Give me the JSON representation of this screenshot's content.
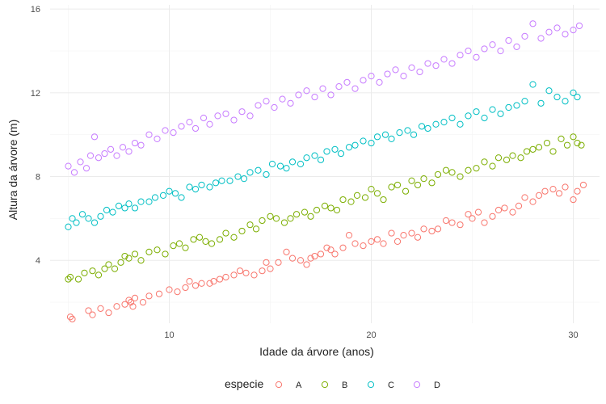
{
  "chart_data": {
    "type": "scatter",
    "xlabel": "Idade da árvore (anos)",
    "ylabel": "Altura da árvore (m)",
    "xlim": [
      4.1,
      31.3
    ],
    "ylim": [
      1.0,
      16.2
    ],
    "xticks": [
      10,
      20,
      30
    ],
    "yticks": [
      4,
      8,
      12,
      16
    ],
    "grid": true,
    "legend": {
      "title": "especie",
      "position": "bottom"
    },
    "series": [
      {
        "name": "A",
        "color": "#F8766D",
        "points": [
          [
            5.1,
            1.3
          ],
          [
            5.2,
            1.2
          ],
          [
            6.0,
            1.6
          ],
          [
            6.2,
            1.4
          ],
          [
            6.6,
            1.7
          ],
          [
            7.0,
            1.5
          ],
          [
            7.4,
            1.8
          ],
          [
            7.8,
            1.9
          ],
          [
            8.0,
            2.1
          ],
          [
            8.1,
            2.0
          ],
          [
            8.2,
            1.8
          ],
          [
            8.3,
            2.2
          ],
          [
            8.7,
            2.0
          ],
          [
            9.0,
            2.3
          ],
          [
            9.5,
            2.4
          ],
          [
            10.0,
            2.6
          ],
          [
            10.4,
            2.5
          ],
          [
            10.8,
            2.7
          ],
          [
            11.0,
            3.0
          ],
          [
            11.3,
            2.8
          ],
          [
            11.6,
            2.9
          ],
          [
            12.0,
            2.9
          ],
          [
            12.2,
            3.0
          ],
          [
            12.5,
            3.1
          ],
          [
            12.8,
            3.2
          ],
          [
            13.2,
            3.3
          ],
          [
            13.5,
            3.5
          ],
          [
            13.8,
            3.4
          ],
          [
            14.2,
            3.3
          ],
          [
            14.6,
            3.5
          ],
          [
            14.8,
            3.9
          ],
          [
            15.0,
            3.6
          ],
          [
            15.4,
            3.9
          ],
          [
            15.8,
            4.4
          ],
          [
            16.1,
            4.1
          ],
          [
            16.5,
            4.0
          ],
          [
            16.8,
            3.8
          ],
          [
            17.0,
            4.1
          ],
          [
            17.2,
            4.2
          ],
          [
            17.5,
            4.3
          ],
          [
            17.8,
            4.6
          ],
          [
            18.0,
            4.5
          ],
          [
            18.2,
            4.3
          ],
          [
            18.6,
            4.6
          ],
          [
            18.9,
            5.2
          ],
          [
            19.2,
            4.8
          ],
          [
            19.6,
            4.7
          ],
          [
            20.0,
            4.9
          ],
          [
            20.3,
            5.0
          ],
          [
            20.6,
            4.8
          ],
          [
            21.0,
            5.3
          ],
          [
            21.3,
            4.9
          ],
          [
            21.6,
            5.2
          ],
          [
            22.0,
            5.3
          ],
          [
            22.3,
            5.1
          ],
          [
            22.6,
            5.5
          ],
          [
            23.0,
            5.4
          ],
          [
            23.3,
            5.5
          ],
          [
            23.7,
            5.9
          ],
          [
            24.0,
            5.8
          ],
          [
            24.4,
            5.7
          ],
          [
            24.8,
            6.2
          ],
          [
            25.0,
            6.0
          ],
          [
            25.3,
            6.3
          ],
          [
            25.6,
            5.8
          ],
          [
            26.0,
            6.1
          ],
          [
            26.3,
            6.4
          ],
          [
            26.6,
            6.5
          ],
          [
            27.0,
            6.3
          ],
          [
            27.3,
            6.6
          ],
          [
            27.6,
            7.0
          ],
          [
            28.0,
            6.8
          ],
          [
            28.3,
            7.1
          ],
          [
            28.6,
            7.3
          ],
          [
            29.0,
            7.4
          ],
          [
            29.3,
            7.2
          ],
          [
            29.6,
            7.5
          ],
          [
            30.0,
            6.9
          ],
          [
            30.2,
            7.3
          ],
          [
            30.5,
            7.6
          ]
        ]
      },
      {
        "name": "B",
        "color": "#7CAE00",
        "points": [
          [
            5.0,
            3.1
          ],
          [
            5.1,
            3.2
          ],
          [
            5.5,
            3.1
          ],
          [
            5.8,
            3.4
          ],
          [
            6.2,
            3.5
          ],
          [
            6.5,
            3.3
          ],
          [
            6.8,
            3.6
          ],
          [
            7.0,
            3.8
          ],
          [
            7.3,
            3.6
          ],
          [
            7.6,
            3.9
          ],
          [
            7.8,
            4.2
          ],
          [
            8.0,
            4.1
          ],
          [
            8.3,
            4.3
          ],
          [
            8.6,
            4.0
          ],
          [
            9.0,
            4.4
          ],
          [
            9.4,
            4.5
          ],
          [
            9.8,
            4.3
          ],
          [
            10.2,
            4.7
          ],
          [
            10.5,
            4.8
          ],
          [
            10.8,
            4.6
          ],
          [
            11.2,
            5.0
          ],
          [
            11.5,
            5.1
          ],
          [
            11.8,
            4.9
          ],
          [
            12.1,
            4.8
          ],
          [
            12.5,
            5.0
          ],
          [
            12.8,
            5.3
          ],
          [
            13.2,
            5.1
          ],
          [
            13.6,
            5.4
          ],
          [
            14.0,
            5.7
          ],
          [
            14.3,
            5.5
          ],
          [
            14.6,
            5.9
          ],
          [
            15.0,
            6.1
          ],
          [
            15.3,
            6.0
          ],
          [
            15.7,
            5.8
          ],
          [
            16.0,
            6.0
          ],
          [
            16.3,
            6.2
          ],
          [
            16.7,
            6.3
          ],
          [
            17.0,
            6.1
          ],
          [
            17.3,
            6.4
          ],
          [
            17.7,
            6.6
          ],
          [
            18.0,
            6.5
          ],
          [
            18.3,
            6.4
          ],
          [
            18.6,
            6.9
          ],
          [
            19.0,
            6.8
          ],
          [
            19.3,
            7.1
          ],
          [
            19.7,
            7.0
          ],
          [
            20.0,
            7.4
          ],
          [
            20.3,
            7.2
          ],
          [
            20.6,
            6.9
          ],
          [
            21.0,
            7.5
          ],
          [
            21.3,
            7.6
          ],
          [
            21.7,
            7.3
          ],
          [
            22.0,
            7.8
          ],
          [
            22.3,
            7.6
          ],
          [
            22.6,
            7.9
          ],
          [
            23.0,
            7.7
          ],
          [
            23.3,
            8.1
          ],
          [
            23.7,
            8.3
          ],
          [
            24.0,
            8.2
          ],
          [
            24.4,
            8.0
          ],
          [
            24.8,
            8.3
          ],
          [
            25.2,
            8.4
          ],
          [
            25.6,
            8.7
          ],
          [
            26.0,
            8.5
          ],
          [
            26.3,
            8.9
          ],
          [
            26.7,
            8.8
          ],
          [
            27.0,
            9.0
          ],
          [
            27.4,
            8.9
          ],
          [
            27.7,
            9.2
          ],
          [
            28.0,
            9.3
          ],
          [
            28.3,
            9.4
          ],
          [
            28.7,
            9.6
          ],
          [
            29.0,
            9.2
          ],
          [
            29.4,
            9.8
          ],
          [
            29.7,
            9.5
          ],
          [
            30.0,
            9.9
          ],
          [
            30.2,
            9.6
          ],
          [
            30.4,
            9.5
          ]
        ]
      },
      {
        "name": "C",
        "color": "#00BFC4",
        "points": [
          [
            5.0,
            5.6
          ],
          [
            5.2,
            6.0
          ],
          [
            5.4,
            5.8
          ],
          [
            5.7,
            6.2
          ],
          [
            6.0,
            6.0
          ],
          [
            6.3,
            5.8
          ],
          [
            6.6,
            6.1
          ],
          [
            6.9,
            6.4
          ],
          [
            7.2,
            6.3
          ],
          [
            7.5,
            6.6
          ],
          [
            7.8,
            6.5
          ],
          [
            8.0,
            6.7
          ],
          [
            8.3,
            6.5
          ],
          [
            8.6,
            6.8
          ],
          [
            9.0,
            6.8
          ],
          [
            9.3,
            7.0
          ],
          [
            9.7,
            7.1
          ],
          [
            10.0,
            7.3
          ],
          [
            10.3,
            7.2
          ],
          [
            10.6,
            7.0
          ],
          [
            11.0,
            7.5
          ],
          [
            11.3,
            7.4
          ],
          [
            11.6,
            7.6
          ],
          [
            12.0,
            7.5
          ],
          [
            12.3,
            7.7
          ],
          [
            12.6,
            7.8
          ],
          [
            13.0,
            7.8
          ],
          [
            13.4,
            8.0
          ],
          [
            13.7,
            7.9
          ],
          [
            14.0,
            8.2
          ],
          [
            14.4,
            8.3
          ],
          [
            14.8,
            8.1
          ],
          [
            15.1,
            8.6
          ],
          [
            15.5,
            8.5
          ],
          [
            15.8,
            8.4
          ],
          [
            16.1,
            8.7
          ],
          [
            16.5,
            8.6
          ],
          [
            16.8,
            8.9
          ],
          [
            17.2,
            9.0
          ],
          [
            17.5,
            8.8
          ],
          [
            17.8,
            9.2
          ],
          [
            18.2,
            9.3
          ],
          [
            18.5,
            9.1
          ],
          [
            18.9,
            9.4
          ],
          [
            19.2,
            9.5
          ],
          [
            19.6,
            9.7
          ],
          [
            20.0,
            9.6
          ],
          [
            20.3,
            9.9
          ],
          [
            20.7,
            10.0
          ],
          [
            21.0,
            9.8
          ],
          [
            21.4,
            10.1
          ],
          [
            21.8,
            10.2
          ],
          [
            22.1,
            10.0
          ],
          [
            22.5,
            10.4
          ],
          [
            22.8,
            10.3
          ],
          [
            23.2,
            10.5
          ],
          [
            23.6,
            10.6
          ],
          [
            24.0,
            10.8
          ],
          [
            24.4,
            10.5
          ],
          [
            24.8,
            10.9
          ],
          [
            25.2,
            11.1
          ],
          [
            25.6,
            10.8
          ],
          [
            26.0,
            11.2
          ],
          [
            26.4,
            11.0
          ],
          [
            26.8,
            11.3
          ],
          [
            27.2,
            11.4
          ],
          [
            27.6,
            11.6
          ],
          [
            28.0,
            12.4
          ],
          [
            28.4,
            11.5
          ],
          [
            28.8,
            12.1
          ],
          [
            29.2,
            11.8
          ],
          [
            29.6,
            11.6
          ],
          [
            30.0,
            12.0
          ],
          [
            30.2,
            11.8
          ]
        ]
      },
      {
        "name": "D",
        "color": "#C77CFF",
        "points": [
          [
            5.0,
            8.5
          ],
          [
            5.3,
            8.2
          ],
          [
            5.6,
            8.7
          ],
          [
            5.9,
            8.4
          ],
          [
            6.1,
            9.0
          ],
          [
            6.3,
            9.9
          ],
          [
            6.5,
            8.9
          ],
          [
            6.8,
            9.1
          ],
          [
            7.1,
            9.3
          ],
          [
            7.4,
            9.0
          ],
          [
            7.7,
            9.4
          ],
          [
            8.0,
            9.2
          ],
          [
            8.3,
            9.6
          ],
          [
            8.6,
            9.5
          ],
          [
            9.0,
            10.0
          ],
          [
            9.4,
            9.8
          ],
          [
            9.8,
            10.2
          ],
          [
            10.2,
            10.1
          ],
          [
            10.6,
            10.4
          ],
          [
            11.0,
            10.6
          ],
          [
            11.3,
            10.3
          ],
          [
            11.7,
            10.8
          ],
          [
            12.0,
            10.5
          ],
          [
            12.4,
            10.9
          ],
          [
            12.8,
            11.0
          ],
          [
            13.2,
            10.7
          ],
          [
            13.6,
            11.1
          ],
          [
            14.0,
            10.9
          ],
          [
            14.4,
            11.4
          ],
          [
            14.8,
            11.6
          ],
          [
            15.2,
            11.3
          ],
          [
            15.6,
            11.7
          ],
          [
            16.0,
            11.5
          ],
          [
            16.4,
            11.9
          ],
          [
            16.8,
            12.1
          ],
          [
            17.2,
            11.8
          ],
          [
            17.6,
            12.2
          ],
          [
            18.0,
            11.9
          ],
          [
            18.4,
            12.3
          ],
          [
            18.8,
            12.5
          ],
          [
            19.2,
            12.2
          ],
          [
            19.6,
            12.6
          ],
          [
            20.0,
            12.8
          ],
          [
            20.4,
            12.5
          ],
          [
            20.8,
            12.9
          ],
          [
            21.2,
            13.1
          ],
          [
            21.6,
            12.8
          ],
          [
            22.0,
            13.2
          ],
          [
            22.4,
            13.0
          ],
          [
            22.8,
            13.4
          ],
          [
            23.2,
            13.3
          ],
          [
            23.6,
            13.6
          ],
          [
            24.0,
            13.4
          ],
          [
            24.4,
            13.8
          ],
          [
            24.8,
            14.0
          ],
          [
            25.2,
            13.7
          ],
          [
            25.6,
            14.1
          ],
          [
            26.0,
            14.3
          ],
          [
            26.4,
            14.0
          ],
          [
            26.8,
            14.5
          ],
          [
            27.2,
            14.2
          ],
          [
            27.6,
            14.7
          ],
          [
            28.0,
            15.3
          ],
          [
            28.4,
            14.6
          ],
          [
            28.8,
            14.9
          ],
          [
            29.2,
            15.1
          ],
          [
            29.6,
            14.8
          ],
          [
            30.0,
            15.0
          ],
          [
            30.3,
            15.2
          ]
        ]
      }
    ]
  }
}
